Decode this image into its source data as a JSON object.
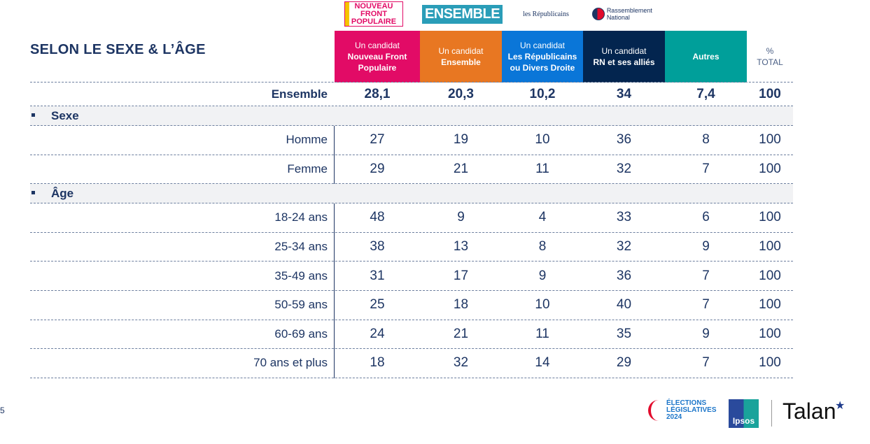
{
  "title": "SELON LE SEXE & L’ÂGE",
  "logos": {
    "nfp": "NOUVEAU FRONT POPULAIRE",
    "ensemble": "ENSEMBLE",
    "lr": "les Républicains",
    "rn": "Rassemblement National"
  },
  "columns": [
    {
      "top": "Un candidat",
      "bold": "Nouveau Front Populaire",
      "color": "#e20b66"
    },
    {
      "top": "Un candidat",
      "bold": "Ensemble",
      "color": "#e87722"
    },
    {
      "top": "Un candidat",
      "bold": "Les Républicains ou Divers Droite",
      "color": "#0a76d8"
    },
    {
      "top": "Un candidat",
      "bold": "RN et ses alliés",
      "color": "#03254f"
    },
    {
      "top": "",
      "bold": "Autres",
      "color": "#009f9a"
    }
  ],
  "total_header": {
    "pct": "%",
    "label": "TOTAL"
  },
  "ensemble_row": {
    "label": "Ensemble",
    "values": [
      "28,1",
      "20,3",
      "10,2",
      "34",
      "7,4",
      "100"
    ]
  },
  "sections": [
    {
      "label": "Sexe",
      "rows": [
        {
          "label": "Homme",
          "values": [
            "27",
            "19",
            "10",
            "36",
            "8",
            "100"
          ]
        },
        {
          "label": "Femme",
          "values": [
            "29",
            "21",
            "11",
            "32",
            "7",
            "100"
          ]
        }
      ]
    },
    {
      "label": "Âge",
      "rows": [
        {
          "label": "18-24 ans",
          "values": [
            "48",
            "9",
            "4",
            "33",
            "6",
            "100"
          ]
        },
        {
          "label": "25-34 ans",
          "values": [
            "38",
            "13",
            "8",
            "32",
            "9",
            "100"
          ]
        },
        {
          "label": "35-49 ans",
          "values": [
            "31",
            "17",
            "9",
            "36",
            "7",
            "100"
          ]
        },
        {
          "label": "50-59 ans",
          "values": [
            "25",
            "18",
            "10",
            "40",
            "7",
            "100"
          ]
        },
        {
          "label": "60-69 ans",
          "values": [
            "24",
            "21",
            "11",
            "35",
            "9",
            "100"
          ]
        },
        {
          "label": "70 ans et plus",
          "values": [
            "18",
            "32",
            "14",
            "29",
            "7",
            "100"
          ]
        }
      ]
    }
  ],
  "page_number": "5",
  "footer": {
    "elections": "ÉLECTIONS LÉGISLATIVES 2024",
    "ipsos": "Ipsos",
    "talan": "Talan"
  }
}
